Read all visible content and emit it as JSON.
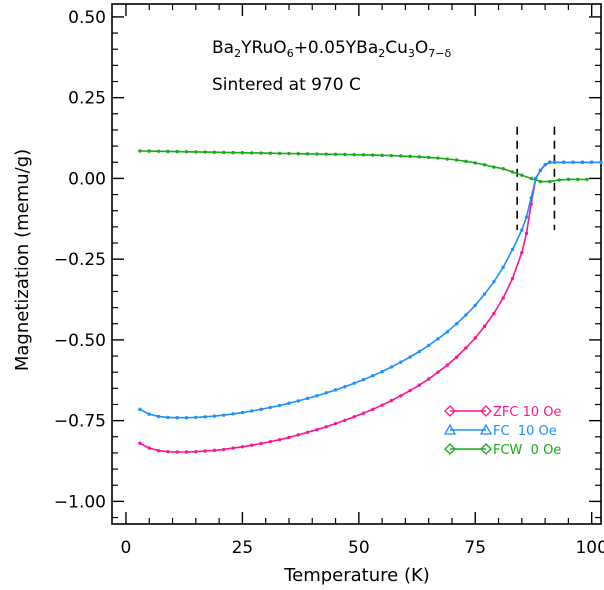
{
  "chart_data": {
    "type": "line",
    "xlabel": "Temperature (K)",
    "ylabel": "Magnetization (memu/g)",
    "xlim": [
      -3,
      102
    ],
    "ylim": [
      -1.07,
      0.54
    ],
    "x_ticks": [
      0,
      25,
      50,
      75,
      100
    ],
    "x_tick_labels": [
      "0",
      "25",
      "50",
      "75",
      "100"
    ],
    "y_ticks": [
      -1.0,
      -0.75,
      -0.5,
      -0.25,
      0.0,
      0.25,
      0.5
    ],
    "y_tick_labels": [
      "−1.00",
      "−0.75",
      "−0.50",
      "−0.25",
      "0.00",
      "0.25",
      "0.50"
    ],
    "grid": false,
    "legend_position": "lower-right",
    "annotation": {
      "line1": {
        "parts": [
          {
            "t": "Ba",
            "s": 0
          },
          {
            "t": "2",
            "s": -1
          },
          {
            "t": "YRuO",
            "s": 0
          },
          {
            "t": "6",
            "s": -1
          },
          {
            "t": "+0.05YBa",
            "s": 0
          },
          {
            "t": "2",
            "s": -1
          },
          {
            "t": "Cu",
            "s": 0
          },
          {
            "t": "3",
            "s": -1
          },
          {
            "t": "O",
            "s": 0
          },
          {
            "t": "7−δ",
            "s": -1
          }
        ]
      },
      "line2": "Sintered at 970 C"
    },
    "markers": [
      84,
      92
    ],
    "series": [
      {
        "name": "ZFC 10 Oe",
        "marker": "diamond",
        "color": "#ff1493",
        "x": [
          3,
          5,
          7,
          9,
          11,
          13,
          15,
          17,
          19,
          21,
          23,
          25,
          27,
          29,
          31,
          33,
          35,
          37,
          39,
          41,
          43,
          45,
          47,
          49,
          51,
          53,
          55,
          57,
          59,
          61,
          63,
          65,
          67,
          69,
          71,
          73,
          75,
          77,
          79,
          81,
          83,
          85,
          86,
          87,
          88,
          89,
          90,
          91,
          92,
          94,
          96,
          98,
          100,
          102
        ],
        "y": [
          -0.82,
          -0.835,
          -0.843,
          -0.846,
          -0.847,
          -0.847,
          -0.846,
          -0.844,
          -0.842,
          -0.839,
          -0.835,
          -0.831,
          -0.826,
          -0.821,
          -0.815,
          -0.809,
          -0.802,
          -0.794,
          -0.786,
          -0.778,
          -0.769,
          -0.759,
          -0.749,
          -0.738,
          -0.727,
          -0.715,
          -0.702,
          -0.688,
          -0.673,
          -0.657,
          -0.64,
          -0.621,
          -0.6,
          -0.578,
          -0.553,
          -0.525,
          -0.494,
          -0.458,
          -0.418,
          -0.37,
          -0.31,
          -0.23,
          -0.17,
          -0.08,
          0.0,
          0.025,
          0.042,
          0.05,
          0.05,
          0.05,
          0.05,
          0.05,
          0.05,
          0.05
        ]
      },
      {
        "name": "FC  10 Oe",
        "marker": "triangle",
        "color": "#1e90ff",
        "x": [
          3,
          5,
          7,
          9,
          11,
          13,
          15,
          17,
          19,
          21,
          23,
          25,
          27,
          29,
          31,
          33,
          35,
          37,
          39,
          41,
          43,
          45,
          47,
          49,
          51,
          53,
          55,
          57,
          59,
          61,
          63,
          65,
          67,
          69,
          71,
          73,
          75,
          77,
          79,
          81,
          83,
          85,
          86,
          87,
          88,
          89,
          90,
          91,
          92,
          94,
          96,
          98,
          100,
          102
        ],
        "y": [
          -0.715,
          -0.73,
          -0.737,
          -0.74,
          -0.741,
          -0.741,
          -0.74,
          -0.738,
          -0.736,
          -0.733,
          -0.729,
          -0.725,
          -0.72,
          -0.715,
          -0.709,
          -0.703,
          -0.696,
          -0.689,
          -0.681,
          -0.673,
          -0.664,
          -0.655,
          -0.645,
          -0.634,
          -0.623,
          -0.611,
          -0.598,
          -0.584,
          -0.569,
          -0.553,
          -0.536,
          -0.517,
          -0.497,
          -0.475,
          -0.45,
          -0.423,
          -0.393,
          -0.358,
          -0.32,
          -0.275,
          -0.22,
          -0.16,
          -0.12,
          -0.06,
          0.0,
          0.025,
          0.042,
          0.05,
          0.05,
          0.05,
          0.05,
          0.05,
          0.05,
          0.05
        ]
      },
      {
        "name": "FCW  0 Oe",
        "marker": "diamond",
        "color": "#1aaa1a",
        "x": [
          3,
          5,
          7,
          9,
          11,
          13,
          15,
          17,
          19,
          21,
          23,
          25,
          27,
          29,
          31,
          33,
          35,
          37,
          39,
          41,
          43,
          45,
          47,
          49,
          51,
          53,
          55,
          57,
          59,
          61,
          63,
          65,
          67,
          69,
          71,
          73,
          75,
          77,
          79,
          81,
          83,
          85,
          87,
          89,
          91,
          93,
          95,
          97,
          99
        ],
        "y": [
          0.085,
          0.0845,
          0.084,
          0.0835,
          0.083,
          0.0825,
          0.082,
          0.0815,
          0.081,
          0.0805,
          0.08,
          0.0795,
          0.079,
          0.0785,
          0.078,
          0.0775,
          0.077,
          0.0765,
          0.076,
          0.0755,
          0.075,
          0.0745,
          0.074,
          0.0735,
          0.073,
          0.0722,
          0.0715,
          0.0705,
          0.0695,
          0.0682,
          0.0668,
          0.065,
          0.063,
          0.06,
          0.057,
          0.053,
          0.048,
          0.042,
          0.035,
          0.03,
          0.02,
          0.01,
          0.0,
          -0.01,
          -0.01,
          -0.005,
          -0.003,
          -0.003,
          -0.003
        ]
      }
    ]
  }
}
